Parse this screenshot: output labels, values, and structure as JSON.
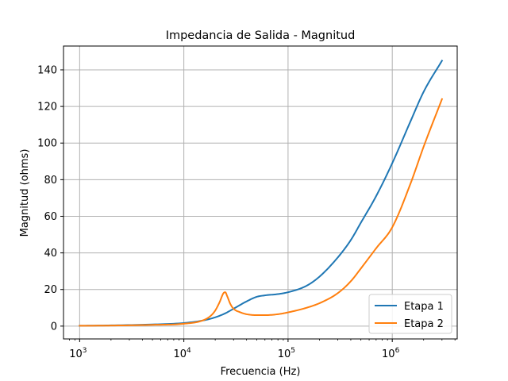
{
  "chart_data": {
    "type": "line",
    "title": "Impedancia de Salida - Magnitud",
    "xlabel": "Frecuencia (Hz)",
    "ylabel": "Magnitud (ohms)",
    "x_scale": "log",
    "xlim": [
      700,
      4200000
    ],
    "ylim": [
      -7,
      153
    ],
    "xticks": [
      {
        "base": "10",
        "exp": "3",
        "value": 1000
      },
      {
        "base": "10",
        "exp": "4",
        "value": 10000
      },
      {
        "base": "10",
        "exp": "5",
        "value": 100000
      },
      {
        "base": "10",
        "exp": "6",
        "value": 1000000
      }
    ],
    "yticks": [
      0,
      20,
      40,
      60,
      80,
      100,
      120,
      140
    ],
    "grid": true,
    "legend_position": "lower-right",
    "series": [
      {
        "name": "Etapa 1",
        "color": "#1f77b4",
        "x": [
          1000,
          2000,
          5000,
          10000,
          15000,
          20000,
          25000,
          30000,
          40000,
          50000,
          60000,
          80000,
          100000,
          150000,
          200000,
          300000,
          400000,
          500000,
          700000,
          1000000,
          1500000,
          2000000,
          3000000
        ],
        "y": [
          0.2,
          0.4,
          0.9,
          1.7,
          3.0,
          4.8,
          7.0,
          9.5,
          13.5,
          16.0,
          16.8,
          17.5,
          18.5,
          22.0,
          27.0,
          37.5,
          47.0,
          56.5,
          71.0,
          89.0,
          112.0,
          128.0,
          145.0
        ]
      },
      {
        "name": "Etapa 2",
        "color": "#ff7f0e",
        "x": [
          1000,
          2000,
          5000,
          10000,
          15000,
          18000,
          20000,
          22000,
          24000,
          25000,
          26000,
          28000,
          30000,
          35000,
          40000,
          50000,
          60000,
          80000,
          100000,
          150000,
          200000,
          300000,
          400000,
          500000,
          700000,
          1000000,
          1500000,
          2000000,
          3000000
        ],
        "y": [
          0.2,
          0.3,
          0.7,
          1.3,
          3.0,
          5.5,
          8.5,
          13.0,
          18.0,
          18.5,
          16.5,
          12.0,
          9.5,
          7.5,
          6.5,
          6.0,
          6.0,
          6.5,
          7.5,
          10.0,
          12.5,
          18.0,
          24.5,
          31.5,
          42.5,
          54.0,
          78.0,
          98.0,
          124.0
        ]
      }
    ]
  }
}
